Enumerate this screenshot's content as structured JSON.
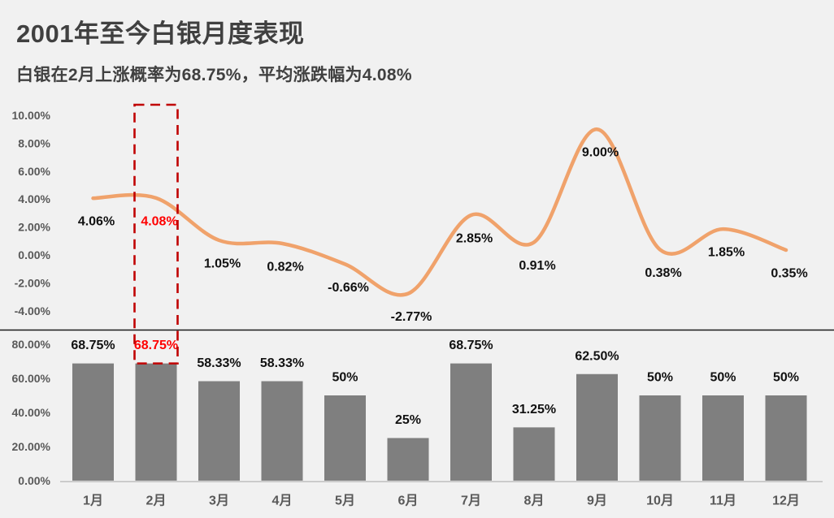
{
  "header": {
    "title": "2001年至今白银月度表现",
    "subtitle": "白银在2月上涨概率为68.75%，平均涨跌幅为4.08%"
  },
  "colors": {
    "background": "#F1F1F1",
    "line_series": "#F0A26B",
    "bar_fill": "#7F7F7F",
    "highlight_box": "#C00000",
    "highlight_label": "#FF0000",
    "data_label": "#111111",
    "axis_text": "#595959",
    "divider": "#1A1A1A",
    "baseline": "#BFBFBF"
  },
  "chart_data": [
    {
      "type": "line",
      "title": "月度平均涨跌幅",
      "categories": [
        "1月",
        "2月",
        "3月",
        "4月",
        "5月",
        "6月",
        "7月",
        "8月",
        "9月",
        "10月",
        "11月",
        "12月"
      ],
      "values": [
        4.06,
        4.08,
        1.05,
        0.82,
        -0.66,
        -2.77,
        2.85,
        0.91,
        9.0,
        0.38,
        1.85,
        0.35
      ],
      "labels": [
        "4.06%",
        "4.08%",
        "1.05%",
        "0.82%",
        "-0.66%",
        "-2.77%",
        "2.85%",
        "0.91%",
        "9.00%",
        "0.38%",
        "1.85%",
        "0.35%"
      ],
      "yticks": [
        "10.00%",
        "8.00%",
        "6.00%",
        "4.00%",
        "2.00%",
        "0.00%",
        "-2.00%",
        "-4.00%"
      ],
      "ylim": [
        -4,
        10
      ],
      "grid": false,
      "legend": "none",
      "highlight_index": 1
    },
    {
      "type": "bar",
      "title": "月度上涨概率",
      "categories": [
        "1月",
        "2月",
        "3月",
        "4月",
        "5月",
        "6月",
        "7月",
        "8月",
        "9月",
        "10月",
        "11月",
        "12月"
      ],
      "values": [
        68.75,
        68.75,
        58.33,
        58.33,
        50,
        25,
        68.75,
        31.25,
        62.5,
        50,
        50,
        50
      ],
      "labels": [
        "68.75%",
        "68.75%",
        "58.33%",
        "58.33%",
        "50%",
        "25%",
        "68.75%",
        "31.25%",
        "62.50%",
        "50%",
        "50%",
        "50%"
      ],
      "yticks": [
        "80.00%",
        "60.00%",
        "40.00%",
        "20.00%",
        "0.00%"
      ],
      "ylim": [
        0,
        80
      ],
      "grid": false,
      "legend": "none",
      "highlight_index": 1
    }
  ]
}
